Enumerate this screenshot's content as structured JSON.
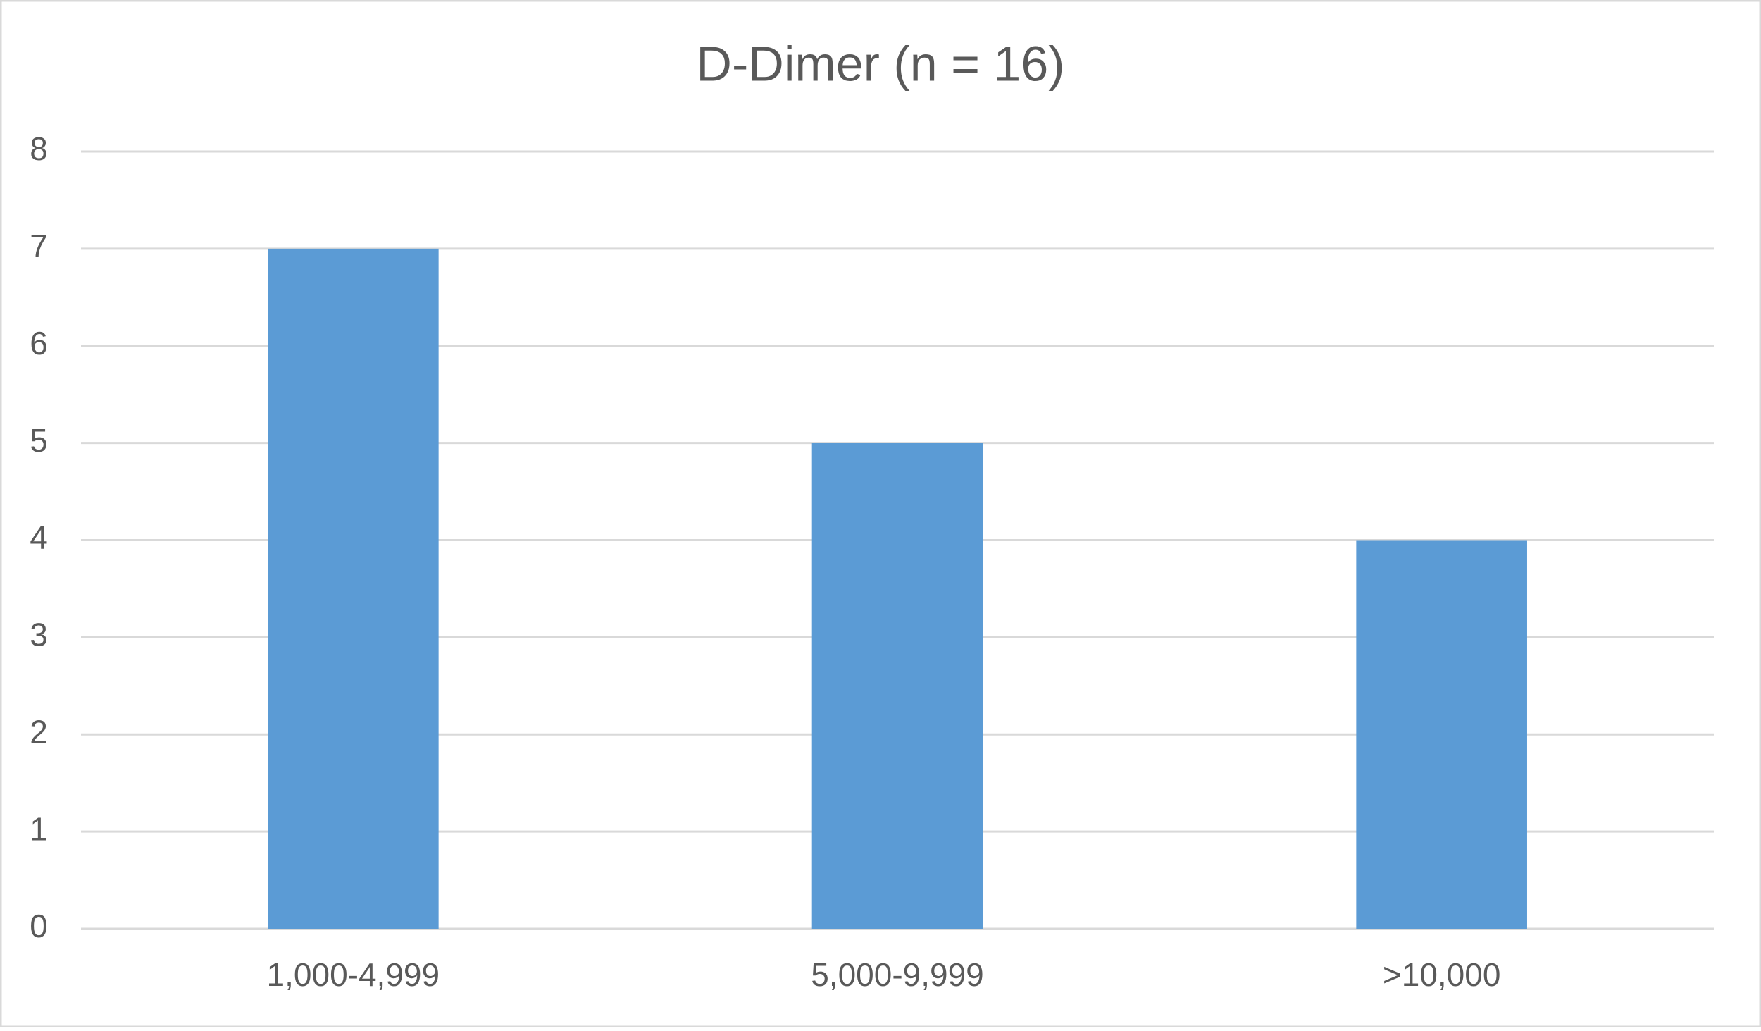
{
  "chart_data": {
    "type": "bar",
    "title": "D-Dimer (n = 16)",
    "categories": [
      "1,000-4,999",
      "5,000-9,999",
      ">10,000"
    ],
    "values": [
      7,
      5,
      4
    ],
    "color": "#5b9bd5",
    "ylim": [
      0,
      8
    ],
    "yticks": [
      0,
      1,
      2,
      3,
      4,
      5,
      6,
      7,
      8
    ],
    "grid": true
  }
}
